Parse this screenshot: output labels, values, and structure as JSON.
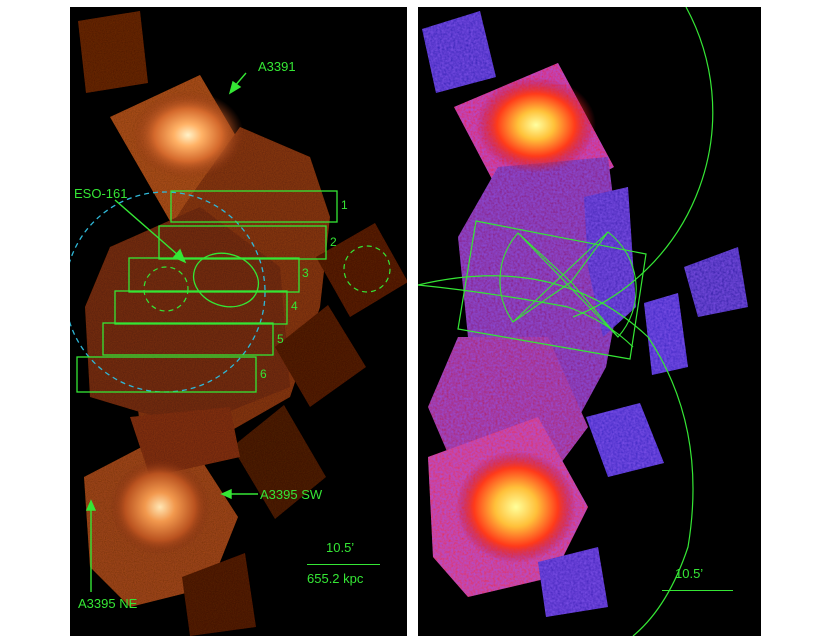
{
  "left_image": {
    "labels": {
      "a3391": "A3391",
      "eso161": "ESO-161",
      "a3395sw": "A3395 SW",
      "a3395ne": "A3395 NE"
    },
    "box_numbers": [
      "1",
      "2",
      "3",
      "4",
      "5",
      "6"
    ],
    "scale_angle": "10.5’",
    "scale_distance": "655.2 kpc"
  },
  "right_image": {
    "scale_angle": "10.5’"
  },
  "colors": {
    "overlay_green": "#35e635",
    "overlay_cyan": "#2fb8d8",
    "left_colormap": "orange-hot",
    "right_colormap": "blue-red-yellow"
  }
}
